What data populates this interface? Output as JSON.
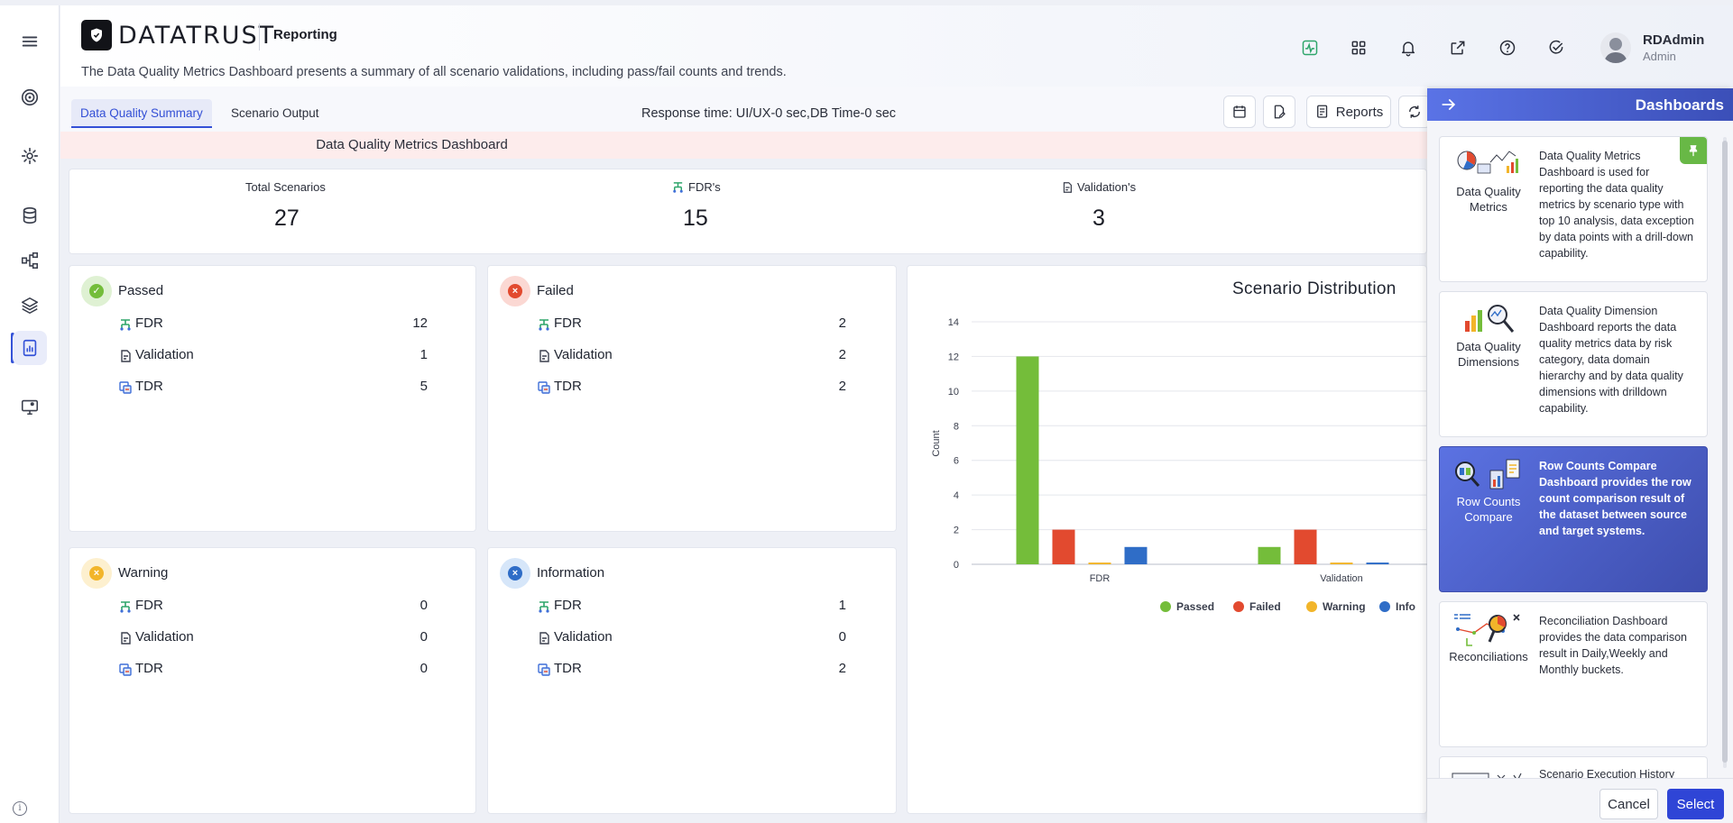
{
  "header": {
    "brand": "DATATRUST",
    "section": "Reporting",
    "subtitle": "The Data Quality Metrics Dashboard presents a summary of all scenario validations, including pass/fail counts and trends.",
    "user_name": "RDAdmin",
    "user_role": "Admin",
    "icons": [
      "activity-icon",
      "grid-apps-icon",
      "bell-icon",
      "external-link-icon",
      "help-icon",
      "check-circle-icon",
      "avatar"
    ]
  },
  "tabs": [
    {
      "label": "Data Quality Summary",
      "active": true
    },
    {
      "label": "Scenario Output",
      "active": false
    }
  ],
  "toolbar": {
    "response_time": "Response time: UI/UX-0 sec,DB Time-0 sec",
    "reports_label": "Reports"
  },
  "banner": "Data Quality Metrics Dashboard",
  "summary": {
    "total_label": "Total Scenarios",
    "total_value": "27",
    "fdr_label": "FDR's",
    "fdr_value": "15",
    "validation_label": "Validation's",
    "validation_value": "3"
  },
  "status_cards": {
    "passed": {
      "title": "Passed",
      "rows": [
        {
          "label": "FDR",
          "value": "12"
        },
        {
          "label": "Validation",
          "value": "1"
        },
        {
          "label": "TDR",
          "value": "5"
        }
      ]
    },
    "failed": {
      "title": "Failed",
      "rows": [
        {
          "label": "FDR",
          "value": "2"
        },
        {
          "label": "Validation",
          "value": "2"
        },
        {
          "label": "TDR",
          "value": "2"
        }
      ]
    },
    "warning": {
      "title": "Warning",
      "rows": [
        {
          "label": "FDR",
          "value": "0"
        },
        {
          "label": "Validation",
          "value": "0"
        },
        {
          "label": "TDR",
          "value": "0"
        }
      ]
    },
    "information": {
      "title": "Information",
      "rows": [
        {
          "label": "FDR",
          "value": "1"
        },
        {
          "label": "Validation",
          "value": "0"
        },
        {
          "label": "TDR",
          "value": "2"
        }
      ]
    }
  },
  "colors": {
    "passed": "#74bd3a",
    "failed": "#e24a2f",
    "warning": "#f2b52a",
    "information": "#2f6dc7",
    "accent": "#3450d6"
  },
  "chart_data": {
    "type": "bar",
    "title": "Scenario Distribution",
    "ylabel": "Count",
    "xlabel": "",
    "categories": [
      "FDR",
      "Validation"
    ],
    "series": [
      {
        "name": "Passed",
        "values": [
          12,
          1
        ]
      },
      {
        "name": "Failed",
        "values": [
          2,
          2
        ]
      },
      {
        "name": "Warning",
        "values": [
          0.1,
          0.1
        ]
      },
      {
        "name": "Info",
        "values": [
          1,
          0.1
        ]
      }
    ],
    "ylim": [
      0,
      14
    ],
    "yticks": [
      "0",
      "2",
      "4",
      "6",
      "8",
      "10",
      "12",
      "14"
    ],
    "grid": true,
    "legend": "bottom"
  },
  "panel": {
    "title": "Dashboards",
    "cards": [
      {
        "name_line1": "Data Quality",
        "name_line2": "Metrics",
        "desc": "Data Quality Metrics Dashboard is used for reporting the data quality metrics by scenario type with top 10 analysis, data exception by data points with a drill-down capability.",
        "selected": false,
        "pinned": true
      },
      {
        "name_line1": "Data Quality",
        "name_line2": "Dimensions",
        "desc": "Data Quality Dimension Dashboard reports the data quality metrics data by risk category, data domain hierarchy and by data quality dimensions with drilldown capability.",
        "selected": false,
        "pinned": false
      },
      {
        "name_line1": "Row Counts",
        "name_line2": "Compare",
        "desc": "Row Counts Compare Dashboard provides the row count comparison result of the dataset between source and target systems.",
        "selected": true,
        "pinned": false
      },
      {
        "name_line1": "Reconciliations",
        "name_line2": "",
        "desc": "Reconciliation Dashboard provides the data comparison result in Daily,Weekly and Monthly buckets.",
        "selected": false,
        "pinned": false
      },
      {
        "name_line1": "",
        "name_line2": "",
        "desc": "Scenario Execution History",
        "selected": false,
        "pinned": false
      }
    ],
    "cancel_label": "Cancel",
    "select_label": "Select"
  }
}
